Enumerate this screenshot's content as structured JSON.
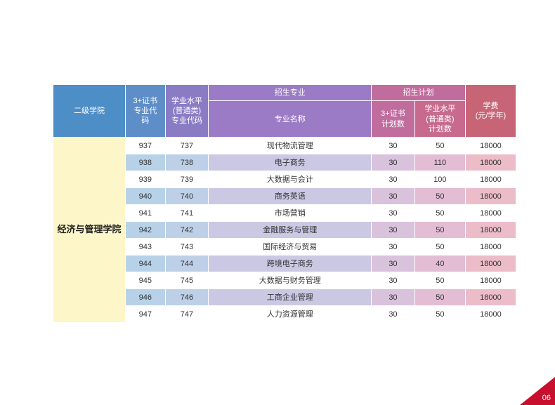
{
  "page_number": "06",
  "table": {
    "header": {
      "institute": "二级学院",
      "code3plus": "3+证书\n专业代\n码",
      "codeAcademic": "学业水平\n(普通类)\n专业代码",
      "majorGroup": "招生专业",
      "majorName": "专业名称",
      "planGroup": "招生计划",
      "plan3plus": "3+证书\n计划数",
      "planAcademic": "学业水平\n(普通类)\n计划数",
      "tuition": "学费\n(元/学年)"
    },
    "institute_name": "经济与管理学院",
    "rows": [
      {
        "c1": "937",
        "c2": "737",
        "c3": "现代物流管理",
        "c4": "30",
        "c5": "50",
        "c6": "18000"
      },
      {
        "c1": "938",
        "c2": "738",
        "c3": "电子商务",
        "c4": "30",
        "c5": "110",
        "c6": "18000"
      },
      {
        "c1": "939",
        "c2": "739",
        "c3": "大数据与会计",
        "c4": "30",
        "c5": "100",
        "c6": "18000"
      },
      {
        "c1": "940",
        "c2": "740",
        "c3": "商务英语",
        "c4": "30",
        "c5": "50",
        "c6": "18000"
      },
      {
        "c1": "941",
        "c2": "741",
        "c3": "市场营销",
        "c4": "30",
        "c5": "50",
        "c6": "18000"
      },
      {
        "c1": "942",
        "c2": "742",
        "c3": "金融服务与管理",
        "c4": "30",
        "c5": "50",
        "c6": "18000"
      },
      {
        "c1": "943",
        "c2": "743",
        "c3": "国际经济与贸易",
        "c4": "30",
        "c5": "50",
        "c6": "18000"
      },
      {
        "c1": "944",
        "c2": "744",
        "c3": "跨境电子商务",
        "c4": "30",
        "c5": "40",
        "c6": "18000"
      },
      {
        "c1": "945",
        "c2": "745",
        "c3": "大数据与财务管理",
        "c4": "30",
        "c5": "50",
        "c6": "18000"
      },
      {
        "c1": "946",
        "c2": "746",
        "c3": "工商企业管理",
        "c4": "30",
        "c5": "50",
        "c6": "18000"
      },
      {
        "c1": "947",
        "c2": "747",
        "c3": "人力资源管理",
        "c4": "30",
        "c5": "50",
        "c6": "18000"
      }
    ]
  },
  "colors": {
    "institute_bg": "#fdf6c9",
    "header_grad_start": "#4e8ec6",
    "header_grad_end": "#c76576",
    "even_row_start": "#b7d2e8",
    "even_row_end": "#ecbdc9",
    "accent": "#c8102e"
  }
}
